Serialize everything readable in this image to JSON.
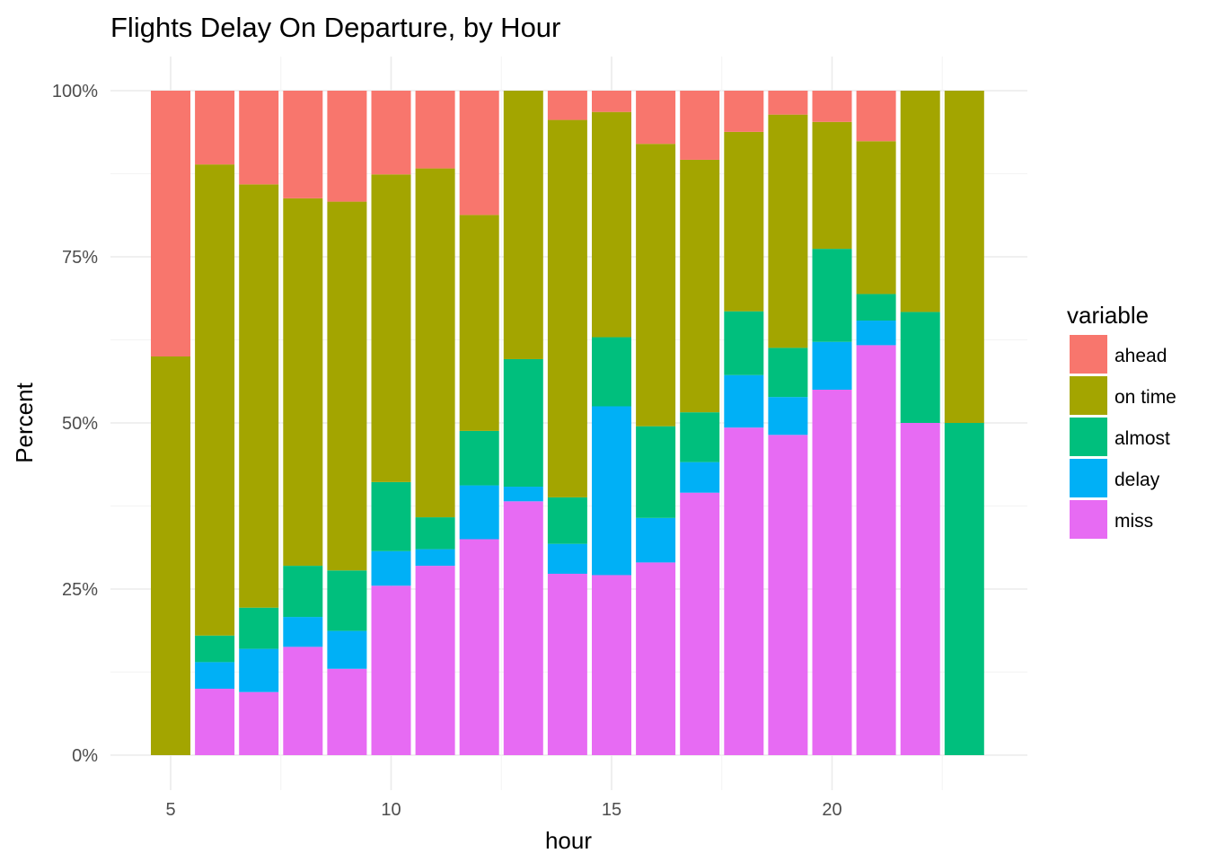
{
  "chart_data": {
    "type": "bar",
    "stacked": true,
    "percent": true,
    "title": "Flights Delay On Departure, by Hour",
    "xlabel": "hour",
    "ylabel": "Percent",
    "x": [
      5,
      6,
      7,
      8,
      9,
      10,
      11,
      12,
      13,
      14,
      15,
      16,
      17,
      18,
      19,
      20,
      21,
      22,
      23
    ],
    "x_ticks": [
      5,
      10,
      15,
      20
    ],
    "xlim": [
      4,
      24
    ],
    "ylim": [
      0,
      1
    ],
    "y_ticks": [
      {
        "value": 0,
        "label": "0%"
      },
      {
        "value": 0.25,
        "label": "25%"
      },
      {
        "value": 0.5,
        "label": "50%"
      },
      {
        "value": 0.75,
        "label": "75%"
      },
      {
        "value": 1,
        "label": "100%"
      }
    ],
    "grid": true,
    "legend_title": "variable",
    "legend_position": "right",
    "series": [
      {
        "name": "miss",
        "color": "#E76BF3",
        "values": [
          0,
          0.1,
          0.095,
          0.163,
          0.13,
          0.255,
          0.285,
          0.325,
          0.382,
          0.273,
          0.271,
          0.29,
          0.395,
          0.493,
          0.482,
          0.55,
          0.617,
          0.5,
          0
        ]
      },
      {
        "name": "delay",
        "color": "#00B0F6",
        "values": [
          0,
          0.04,
          0.065,
          0.045,
          0.057,
          0.052,
          0.025,
          0.081,
          0.022,
          0.045,
          0.254,
          0.067,
          0.046,
          0.079,
          0.057,
          0.072,
          0.037,
          0,
          0
        ]
      },
      {
        "name": "almost",
        "color": "#00BF7D",
        "values": [
          0,
          0.04,
          0.062,
          0.077,
          0.091,
          0.104,
          0.048,
          0.082,
          0.192,
          0.07,
          0.104,
          0.138,
          0.075,
          0.096,
          0.074,
          0.14,
          0.04,
          0.167,
          0.5
        ]
      },
      {
        "name": "on time",
        "color": "#A3A500",
        "values": [
          0.6,
          0.709,
          0.637,
          0.553,
          0.555,
          0.463,
          0.525,
          0.325,
          0.404,
          0.568,
          0.339,
          0.425,
          0.38,
          0.27,
          0.351,
          0.191,
          0.23,
          0.333,
          0.5
        ]
      },
      {
        "name": "ahead",
        "color": "#F8766D",
        "values": [
          0.4,
          0.111,
          0.141,
          0.162,
          0.167,
          0.126,
          0.117,
          0.187,
          0,
          0.044,
          0.032,
          0.08,
          0.104,
          0.062,
          0.036,
          0.047,
          0.076,
          0,
          0
        ]
      }
    ],
    "legend_order": [
      "ahead",
      "on time",
      "almost",
      "delay",
      "miss"
    ]
  }
}
